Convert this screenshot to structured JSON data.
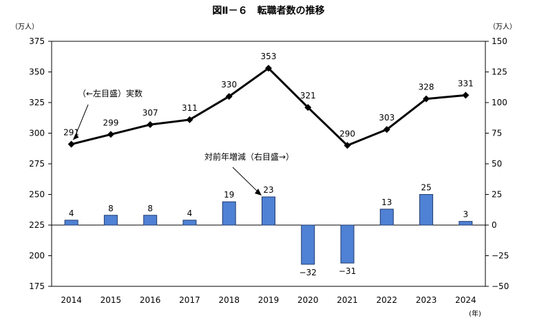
{
  "chart_data": {
    "type": "bar+line",
    "title": "図Ⅱ－６　転職者数の推移",
    "left_unit": "（万人）",
    "right_unit": "（万人）",
    "x_unit": "(年)",
    "categories": [
      "2014",
      "2015",
      "2016",
      "2017",
      "2018",
      "2019",
      "2020",
      "2021",
      "2022",
      "2023",
      "2024"
    ],
    "series": [
      {
        "name": "実数",
        "axis": "left",
        "kind": "line",
        "values": [
          291,
          299,
          307,
          311,
          330,
          353,
          321,
          290,
          303,
          328,
          331
        ]
      },
      {
        "name": "対前年増減",
        "axis": "right",
        "kind": "bar",
        "values": [
          4,
          8,
          8,
          4,
          19,
          23,
          -32,
          -31,
          13,
          25,
          3
        ]
      }
    ],
    "left_axis": {
      "ylim": [
        175,
        375
      ],
      "ticks": [
        175,
        200,
        225,
        250,
        275,
        300,
        325,
        350,
        375
      ]
    },
    "right_axis": {
      "ylim": [
        -50,
        150
      ],
      "ticks": [
        -50,
        -25,
        0,
        25,
        50,
        75,
        100,
        125,
        150
      ]
    },
    "annotations": [
      {
        "text": "（←左目盛）実数",
        "target": "line",
        "index": 0
      },
      {
        "text": "対前年増減（右目盛→）",
        "target": "bar",
        "index": 5
      }
    ],
    "bar_labels": [
      "4",
      "8",
      "8",
      "4",
      "19",
      "23",
      "−32",
      "−31",
      "13",
      "25",
      "3"
    ],
    "line_labels": [
      "291",
      "299",
      "307",
      "311",
      "330",
      "353",
      "321",
      "290",
      "303",
      "328",
      "331"
    ],
    "colors": {
      "bar": "#4f81d4",
      "bar_stroke": "#1f3a6e",
      "line": "#000000"
    },
    "grid": false
  }
}
